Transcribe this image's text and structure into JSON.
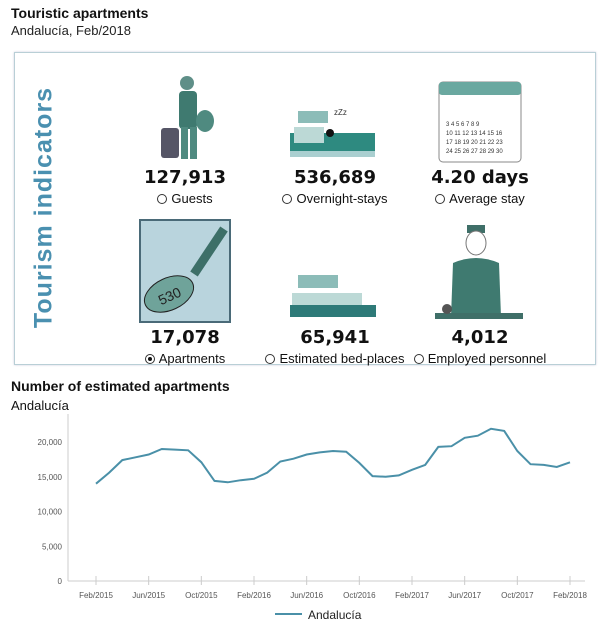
{
  "header": {
    "title": "Touristic apartments",
    "subtitle": "Andalucía, Feb/2018"
  },
  "panel": {
    "title": "Tourism indicators",
    "indicators": [
      {
        "value": "127,913",
        "label": "Guests",
        "selected": false,
        "icon": "traveler-icon"
      },
      {
        "value": "536,689",
        "label": "Overnight-stays",
        "selected": false,
        "icon": "sleeping-bed-icon"
      },
      {
        "value": "4.20 days",
        "label": "Average stay",
        "selected": false,
        "icon": "calendar-icon"
      },
      {
        "value": "17,078",
        "label": "Apartments",
        "selected": true,
        "icon": "key-icon",
        "key_tag": "530"
      },
      {
        "value": "65,941",
        "label": "Estimated bed-places",
        "selected": false,
        "icon": "bed-icon"
      },
      {
        "value": "4,012",
        "label": "Employed personnel",
        "selected": false,
        "icon": "receptionist-icon"
      }
    ]
  },
  "chart_section": {
    "title": "Number of estimated apartments",
    "subtitle": "Andalucía"
  },
  "chart_data": {
    "type": "line",
    "title": "Number of estimated apartments",
    "ylim": [
      0,
      22000
    ],
    "yticks": [
      0,
      5000,
      10000,
      15000,
      20000
    ],
    "ytick_labels": [
      "0",
      "5,000",
      "10,000",
      "15,000",
      "20,000"
    ],
    "xtick_labels": [
      "Feb/2015",
      "Jun/2015",
      "Oct/2015",
      "Feb/2016",
      "Jun/2016",
      "Oct/2016",
      "Feb/2017",
      "Jun/2017",
      "Oct/2017",
      "Feb/2018"
    ],
    "legend": "bottom",
    "color": "#4a90a8",
    "series": [
      {
        "name": "Andalucía",
        "values": [
          14000,
          15600,
          17400,
          17800,
          18200,
          19000,
          18900,
          18800,
          17100,
          14400,
          14200,
          14500,
          14700,
          15600,
          17200,
          17600,
          18200,
          18500,
          18700,
          18600,
          17000,
          15100,
          15000,
          15200,
          16000,
          16700,
          19300,
          19400,
          20600,
          20900,
          21900,
          21600,
          18700,
          16800,
          16700,
          16400,
          17078
        ]
      }
    ]
  }
}
